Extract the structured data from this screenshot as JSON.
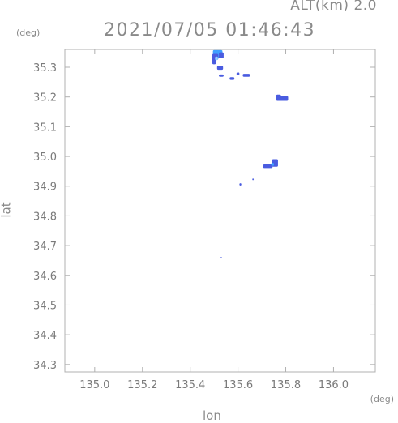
{
  "header": {
    "alt_label": "ALT(km) 2.0",
    "timestamp": "2021/07/05 01:46:43"
  },
  "chart_data": {
    "type": "heatmap",
    "title": "2021/07/05 01:46:43",
    "xlabel": "lon",
    "ylabel": "lat",
    "x_unit": "(deg)",
    "y_unit": "(deg)",
    "xlim": [
      134.875,
      136.175
    ],
    "ylim": [
      34.275,
      35.36
    ],
    "x_ticks": [
      135.0,
      135.2,
      135.4,
      135.6,
      135.8,
      136.0
    ],
    "x_tick_labels": [
      "135.0",
      "135.2",
      "135.4",
      "135.6",
      "135.8",
      "136.0"
    ],
    "y_ticks": [
      35.3,
      35.2,
      35.1,
      35.0,
      34.9,
      34.8,
      34.7,
      34.6,
      34.5,
      34.4,
      34.3
    ],
    "y_tick_labels": [
      "35.3",
      "35.2",
      "35.1",
      "35.0",
      "34.9",
      "34.8",
      "34.7",
      "34.6",
      "34.5",
      "34.4",
      "34.3"
    ],
    "grid": false,
    "colors": {
      "intense": "#4a5ce0",
      "moderate": "#3fa0ff",
      "light": "#8fd0ff"
    },
    "cells": [
      {
        "lon": 135.515,
        "lat": 35.345,
        "w": 0.04,
        "h": 0.025,
        "level": "moderate"
      },
      {
        "lon": 135.505,
        "lat": 35.335,
        "w": 0.025,
        "h": 0.02,
        "level": "intense"
      },
      {
        "lon": 135.53,
        "lat": 35.34,
        "w": 0.02,
        "h": 0.02,
        "level": "intense"
      },
      {
        "lon": 135.5,
        "lat": 35.32,
        "w": 0.015,
        "h": 0.02,
        "level": "intense"
      },
      {
        "lon": 135.51,
        "lat": 35.33,
        "w": 0.012,
        "h": 0.012,
        "level": "light"
      },
      {
        "lon": 135.525,
        "lat": 35.298,
        "w": 0.025,
        "h": 0.013,
        "level": "intense"
      },
      {
        "lon": 135.53,
        "lat": 35.272,
        "w": 0.02,
        "h": 0.008,
        "level": "intense"
      },
      {
        "lon": 135.575,
        "lat": 35.262,
        "w": 0.02,
        "h": 0.009,
        "level": "intense"
      },
      {
        "lon": 135.6,
        "lat": 35.278,
        "w": 0.012,
        "h": 0.009,
        "level": "intense"
      },
      {
        "lon": 135.635,
        "lat": 35.273,
        "w": 0.03,
        "h": 0.01,
        "level": "intense"
      },
      {
        "lon": 135.785,
        "lat": 35.195,
        "w": 0.05,
        "h": 0.016,
        "level": "intense"
      },
      {
        "lon": 135.77,
        "lat": 35.203,
        "w": 0.02,
        "h": 0.01,
        "level": "intense"
      },
      {
        "lon": 135.755,
        "lat": 34.978,
        "w": 0.025,
        "h": 0.025,
        "level": "intense"
      },
      {
        "lon": 135.725,
        "lat": 34.967,
        "w": 0.04,
        "h": 0.012,
        "level": "intense"
      },
      {
        "lon": 135.745,
        "lat": 34.973,
        "w": 0.012,
        "h": 0.01,
        "level": "moderate"
      },
      {
        "lon": 135.663,
        "lat": 34.923,
        "w": 0.006,
        "h": 0.006,
        "level": "intense"
      },
      {
        "lon": 135.61,
        "lat": 34.906,
        "w": 0.008,
        "h": 0.008,
        "level": "intense"
      },
      {
        "lon": 135.53,
        "lat": 34.66,
        "w": 0.004,
        "h": 0.004,
        "level": "intense"
      }
    ]
  }
}
